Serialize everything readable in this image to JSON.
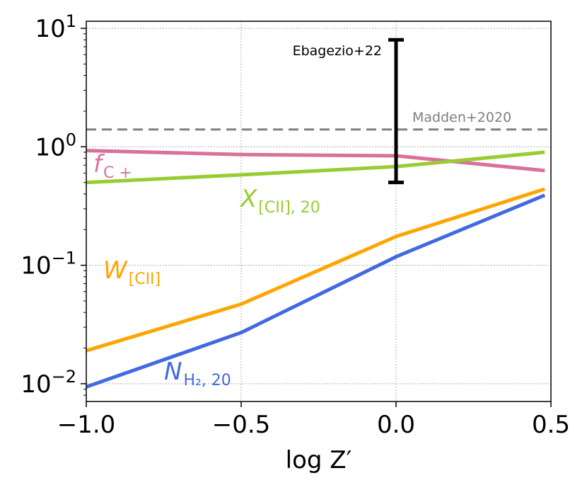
{
  "chart_data": {
    "type": "line",
    "xlabel": "log Z′",
    "ylabel": "",
    "xlim": [
      -1.0,
      0.5
    ],
    "ylim_log10": [
      -2.15,
      1.06
    ],
    "yscale": "log",
    "grid": true,
    "x_ticks": [
      {
        "value": -1.0,
        "label": "−1.0"
      },
      {
        "value": -0.5,
        "label": "−0.5"
      },
      {
        "value": 0.0,
        "label": "0.0"
      },
      {
        "value": 0.5,
        "label": "0.5"
      }
    ],
    "y_ticks": [
      {
        "exp": -2,
        "base": "10",
        "sup": "−2"
      },
      {
        "exp": -1,
        "base": "10",
        "sup": "−1"
      },
      {
        "exp": 0,
        "base": "10",
        "sup": "0"
      },
      {
        "exp": 1,
        "base": "10",
        "sup": "1"
      }
    ],
    "series": [
      {
        "name": "f_C+",
        "label_main": "f",
        "label_sub": "C +",
        "color": "#d9719b",
        "x": [
          -1.0,
          -0.5,
          0.0,
          0.48
        ],
        "y": [
          0.93,
          0.86,
          0.84,
          0.63
        ]
      },
      {
        "name": "X_[CII],20",
        "label_main": "X",
        "label_sub": "[CII], 20",
        "color": "#99cc33",
        "x": [
          -1.0,
          -0.5,
          0.0,
          0.48
        ],
        "y": [
          0.5,
          0.58,
          0.68,
          0.9
        ]
      },
      {
        "name": "W_[CII]",
        "label_main": "W",
        "label_sub": "[CII]",
        "color": "#ffa500",
        "x": [
          -1.0,
          -0.5,
          0.0,
          0.48
        ],
        "y": [
          0.019,
          0.047,
          0.175,
          0.44
        ]
      },
      {
        "name": "N_H2,20",
        "label_main": "N",
        "label_sub": "H₂, 20",
        "color": "#4169e1",
        "x": [
          -1.0,
          -0.5,
          0.0,
          0.48
        ],
        "y": [
          0.0094,
          0.027,
          0.118,
          0.39
        ]
      }
    ],
    "reference_line": {
      "label": "Madden+2020",
      "y": 1.4,
      "color": "#808080",
      "style": "dashed"
    },
    "error_bar": {
      "label": "Ebagezio+22",
      "x": 0.0,
      "y_low": 0.5,
      "y_high": 8.0,
      "color": "#000000"
    }
  }
}
